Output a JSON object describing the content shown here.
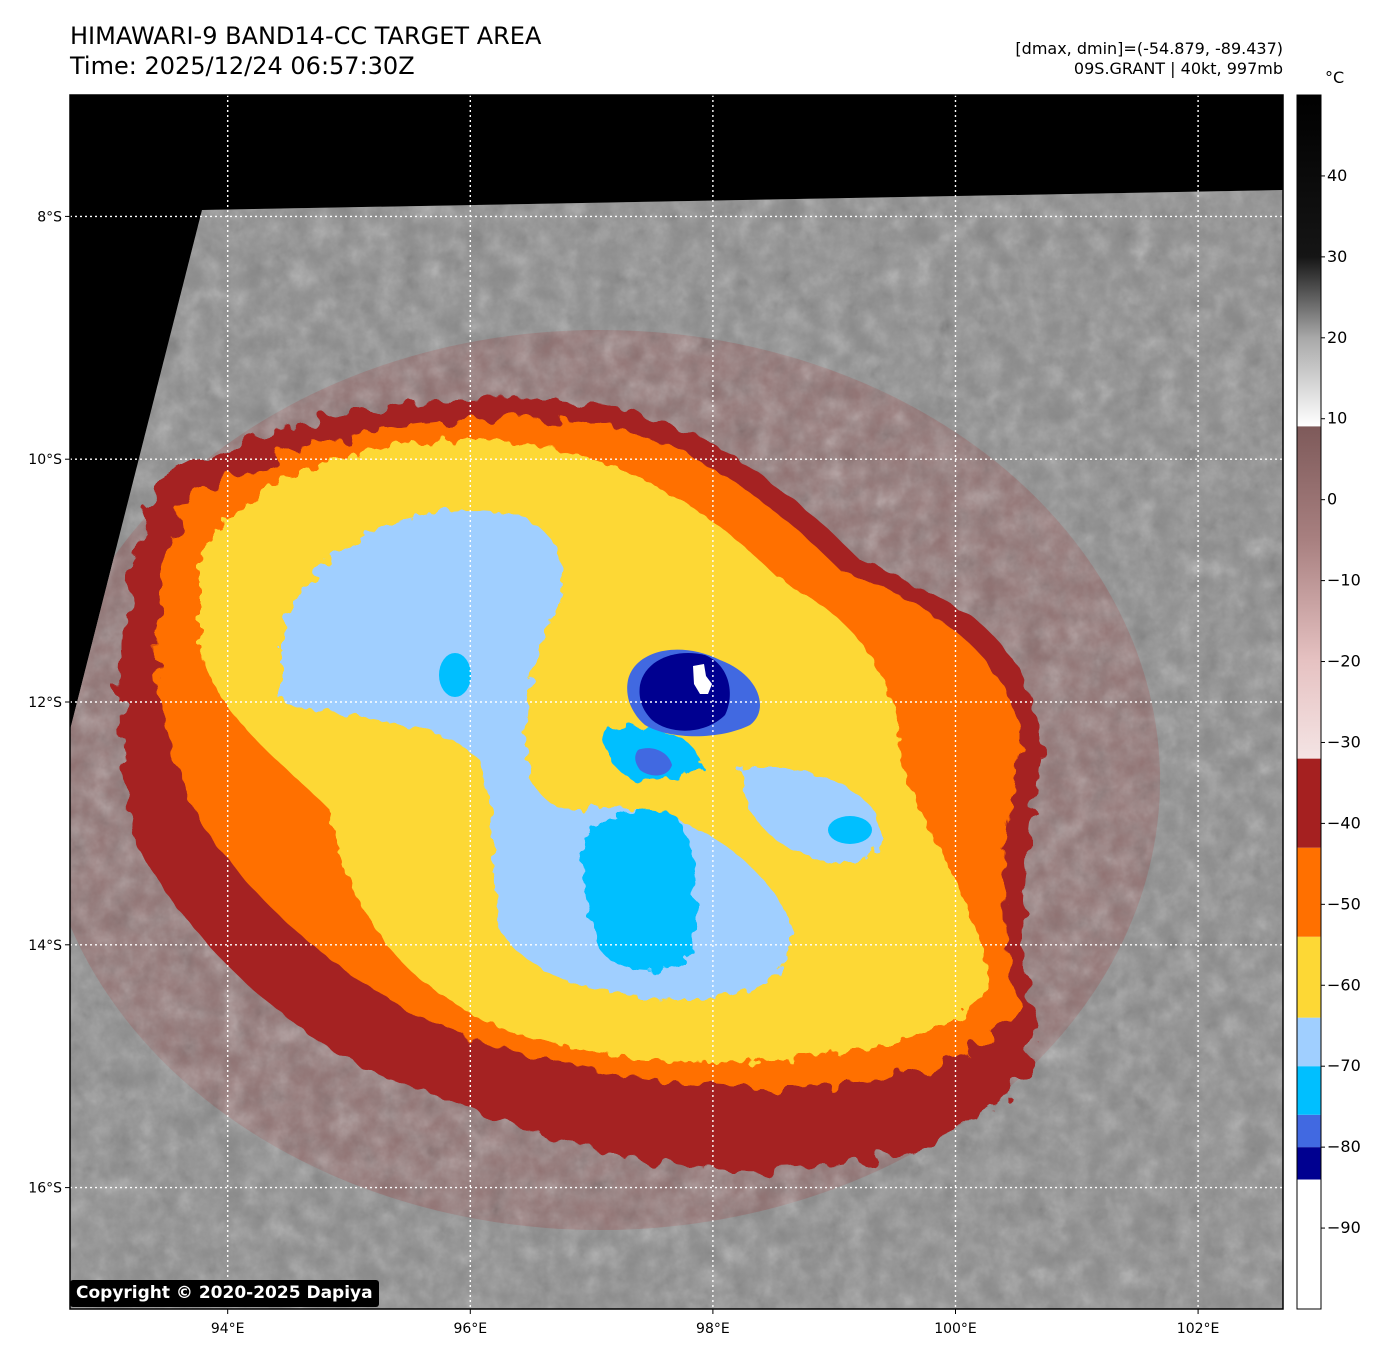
{
  "header": {
    "title_line1": "HIMAWARI-9 BAND14-CC TARGET AREA",
    "title_line2": "Time: 2025/12/24 06:57:30Z",
    "info_line1": "[dmax, dmin]=(-54.879, -89.437)",
    "info_line2": "09S.GRANT | 40kt, 997mb"
  },
  "map": {
    "lon_range": [
      92.7,
      102.7
    ],
    "lat_range": [
      -17.0,
      -7.0
    ],
    "lon_ticks": [
      {
        "value": 94,
        "label": "94°E"
      },
      {
        "value": 96,
        "label": "96°E"
      },
      {
        "value": 98,
        "label": "98°E"
      },
      {
        "value": 100,
        "label": "100°E"
      },
      {
        "value": 102,
        "label": "102°E"
      }
    ],
    "lat_ticks": [
      {
        "value": -8,
        "label": "8°S"
      },
      {
        "value": -10,
        "label": "10°S"
      },
      {
        "value": -12,
        "label": "12°S"
      },
      {
        "value": -14,
        "label": "14°S"
      },
      {
        "value": -16,
        "label": "16°S"
      }
    ],
    "center": {
      "lon": 97.8,
      "lat": -11.8
    },
    "grid": "dotted white"
  },
  "colorbar": {
    "unit": "°C",
    "range": [
      -100,
      50
    ],
    "ticks": [
      {
        "value": 40,
        "label": "40"
      },
      {
        "value": 30,
        "label": "30"
      },
      {
        "value": 20,
        "label": "20"
      },
      {
        "value": 10,
        "label": "10"
      },
      {
        "value": 0,
        "label": "0"
      },
      {
        "value": -10,
        "label": "−10"
      },
      {
        "value": -20,
        "label": "−20"
      },
      {
        "value": -30,
        "label": "−30"
      },
      {
        "value": -40,
        "label": "−40"
      },
      {
        "value": -50,
        "label": "−50"
      },
      {
        "value": -60,
        "label": "−60"
      },
      {
        "value": -70,
        "label": "−70"
      },
      {
        "value": -80,
        "label": "−80"
      },
      {
        "value": -90,
        "label": "−90"
      }
    ],
    "bands": [
      {
        "from": -100,
        "to": -84,
        "color": "#ffffff"
      },
      {
        "from": -84,
        "to": -80,
        "color": "#000090"
      },
      {
        "from": -80,
        "to": -76,
        "color": "#4169e1"
      },
      {
        "from": -76,
        "to": -70,
        "color": "#00bfff"
      },
      {
        "from": -70,
        "to": -64,
        "color": "#a0cfff"
      },
      {
        "from": -64,
        "to": -54,
        "color": "#fdd835"
      },
      {
        "from": -54,
        "to": -43,
        "color": "#ff7000"
      },
      {
        "from": -43,
        "to": -32,
        "color": "#a52020"
      }
    ],
    "gradient_stops": [
      {
        "value": -32,
        "color": "#f4e4e4"
      },
      {
        "value": -20,
        "color": "#e6c2c2"
      },
      {
        "value": -5,
        "color": "#a88080"
      },
      {
        "value": 9,
        "color": "#7e5a5a"
      },
      {
        "value": 9.1,
        "color": "#ffffff"
      },
      {
        "value": 20,
        "color": "#a8a8a8"
      },
      {
        "value": 30,
        "color": "#151515"
      },
      {
        "value": 50,
        "color": "#000000"
      }
    ]
  },
  "colors": {
    "background": "#000000",
    "cloud_warm": "#8a8a8a",
    "cloud_cool": "#8f6b6b",
    "cold_level_1": "#a52020",
    "cold_level_2": "#ff7000",
    "cold_level_3": "#fdd835",
    "cold_level_4": "#a0cfff",
    "cold_level_5": "#00bfff",
    "cold_level_6": "#4169e1",
    "cold_level_7": "#000090"
  },
  "copyright": "Copyright © 2020-2025 Dapiya"
}
